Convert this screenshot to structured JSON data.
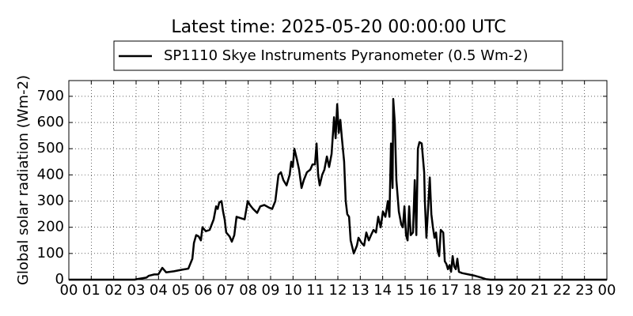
{
  "chart_data": {
    "type": "line",
    "title": "Latest time: 2025-05-20 00:00:00 UTC",
    "ylabel": "Global solar radiation (Wm-2)",
    "legend": "top",
    "grid": true,
    "xlim": [
      0,
      24
    ],
    "ylim": [
      0,
      760
    ],
    "xticks": [
      {
        "value": 0,
        "label": "00"
      },
      {
        "value": 1,
        "label": "01"
      },
      {
        "value": 2,
        "label": "02"
      },
      {
        "value": 3,
        "label": "03"
      },
      {
        "value": 4,
        "label": "04"
      },
      {
        "value": 5,
        "label": "05"
      },
      {
        "value": 6,
        "label": "06"
      },
      {
        "value": 7,
        "label": "07"
      },
      {
        "value": 8,
        "label": "08"
      },
      {
        "value": 9,
        "label": "09"
      },
      {
        "value": 10,
        "label": "10"
      },
      {
        "value": 11,
        "label": "11"
      },
      {
        "value": 12,
        "label": "12"
      },
      {
        "value": 13,
        "label": "13"
      },
      {
        "value": 14,
        "label": "14"
      },
      {
        "value": 15,
        "label": "15"
      },
      {
        "value": 16,
        "label": "16"
      },
      {
        "value": 17,
        "label": "17"
      },
      {
        "value": 18,
        "label": "18"
      },
      {
        "value": 19,
        "label": "19"
      },
      {
        "value": 20,
        "label": "20"
      },
      {
        "value": 21,
        "label": "21"
      },
      {
        "value": 22,
        "label": "22"
      },
      {
        "value": 23,
        "label": "23"
      },
      {
        "value": 24,
        "label": "00"
      }
    ],
    "yticks": [
      0,
      100,
      200,
      300,
      400,
      500,
      600,
      700
    ],
    "x": [
      0,
      2.93,
      3.11,
      3.46,
      3.57,
      3.81,
      3.99,
      4.17,
      4.34,
      4.69,
      5.05,
      5.33,
      5.51,
      5.58,
      5.68,
      5.79,
      5.89,
      5.96,
      6.11,
      6.28,
      6.46,
      6.57,
      6.64,
      6.71,
      6.81,
      6.88,
      6.95,
      7.02,
      7.17,
      7.27,
      7.38,
      7.48,
      7.66,
      7.84,
      7.98,
      8.08,
      8.22,
      8.4,
      8.54,
      8.72,
      8.93,
      9.07,
      9.21,
      9.35,
      9.46,
      9.57,
      9.71,
      9.85,
      9.92,
      9.99,
      10.06,
      10.17,
      10.27,
      10.38,
      10.48,
      10.62,
      10.77,
      10.87,
      10.98,
      11.05,
      11.12,
      11.19,
      11.3,
      11.4,
      11.51,
      11.61,
      11.72,
      11.83,
      11.9,
      11.97,
      12.04,
      12.11,
      12.18,
      12.28,
      12.35,
      12.42,
      12.5,
      12.57,
      12.71,
      12.85,
      12.92,
      13.06,
      13.17,
      13.27,
      13.38,
      13.48,
      13.59,
      13.7,
      13.8,
      13.91,
      14.01,
      14.12,
      14.23,
      14.3,
      14.37,
      14.44,
      14.47,
      14.54,
      14.61,
      14.72,
      14.83,
      14.9,
      14.97,
      15.04,
      15.11,
      15.18,
      15.25,
      15.35,
      15.43,
      15.5,
      15.57,
      15.64,
      15.74,
      15.85,
      15.88,
      15.95,
      16.03,
      16.1,
      16.17,
      16.24,
      16.31,
      16.38,
      16.45,
      16.52,
      16.59,
      16.7,
      16.77,
      16.84,
      16.91,
      16.98,
      17.05,
      17.12,
      17.19,
      17.26,
      17.33,
      17.4,
      17.54,
      17.83,
      18.11,
      18.39,
      18.6,
      18.81,
      24
    ],
    "series": [
      {
        "name": "SP1110 Skye Instruments Pyranometer (0.5 Wm-2)",
        "color": "#000000",
        "values": [
          0,
          0,
          3,
          8,
          15,
          20,
          20,
          45,
          28,
          32,
          38,
          42,
          80,
          140,
          170,
          165,
          150,
          200,
          185,
          190,
          230,
          280,
          270,
          295,
          300,
          260,
          230,
          180,
          165,
          145,
          170,
          240,
          235,
          230,
          300,
          285,
          270,
          255,
          280,
          285,
          275,
          270,
          300,
          400,
          410,
          380,
          360,
          400,
          450,
          430,
          500,
          460,
          420,
          350,
          380,
          410,
          420,
          440,
          440,
          520,
          400,
          360,
          400,
          420,
          470,
          430,
          480,
          620,
          540,
          670,
          560,
          610,
          540,
          450,
          300,
          250,
          240,
          150,
          100,
          130,
          160,
          140,
          130,
          180,
          150,
          170,
          190,
          180,
          240,
          200,
          260,
          240,
          300,
          240,
          520,
          350,
          690,
          600,
          380,
          260,
          210,
          200,
          280,
          170,
          150,
          280,
          170,
          180,
          380,
          170,
          500,
          525,
          520,
          410,
          300,
          160,
          280,
          390,
          250,
          200,
          160,
          180,
          110,
          90,
          190,
          180,
          70,
          60,
          40,
          55,
          30,
          90,
          50,
          40,
          80,
          30,
          25,
          20,
          15,
          8,
          2,
          0,
          0
        ]
      }
    ]
  }
}
